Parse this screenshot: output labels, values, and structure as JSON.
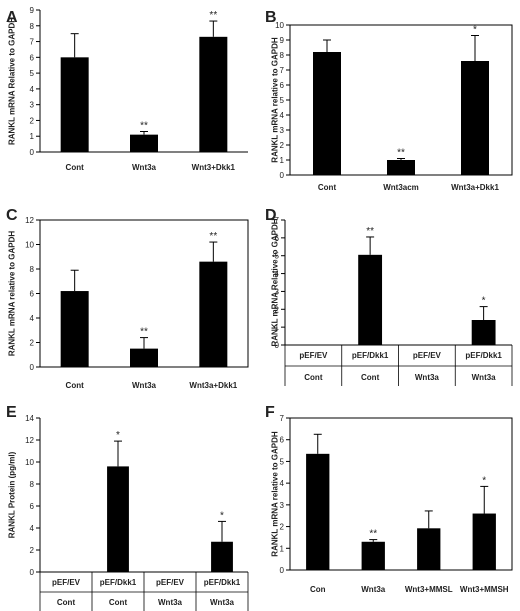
{
  "figure": {
    "panels": [
      "A",
      "B",
      "C",
      "D",
      "E",
      "F"
    ]
  },
  "chart_data": [
    {
      "panel": "A",
      "type": "bar",
      "categories": [
        "Cont",
        "Wnt3a",
        "Wnt3+Dkk1"
      ],
      "values": [
        6.0,
        1.1,
        7.3
      ],
      "errors": [
        1.5,
        0.2,
        1.0
      ],
      "significance": [
        "",
        "**",
        "**"
      ],
      "ylabel": "RANKL mRNA Relative to GAPDH",
      "ylim": [
        0,
        9
      ],
      "yticks": [
        0,
        1,
        2,
        3,
        4,
        5,
        6,
        7,
        8,
        9
      ],
      "grid": false,
      "box": false,
      "color": "#000000"
    },
    {
      "panel": "B",
      "type": "bar",
      "categories": [
        "Cont",
        "Wnt3acm",
        "Wnt3a+Dkk1"
      ],
      "values": [
        8.2,
        1.0,
        7.6
      ],
      "errors": [
        0.8,
        0.1,
        1.7
      ],
      "significance": [
        "",
        "**",
        "*"
      ],
      "ylabel": "RANKL  mRNA relative to GAPDH",
      "ylim": [
        0,
        10
      ],
      "yticks": [
        0,
        1,
        2,
        3,
        4,
        5,
        6,
        7,
        8,
        9,
        10
      ],
      "grid": false,
      "box": true,
      "color": "#000000"
    },
    {
      "panel": "C",
      "type": "bar",
      "categories": [
        "Cont",
        "Wnt3a",
        "Wnt3a+Dkk1"
      ],
      "values": [
        6.2,
        1.5,
        8.6
      ],
      "errors": [
        1.7,
        0.9,
        1.6
      ],
      "significance": [
        "",
        "**",
        "**"
      ],
      "ylabel": "RANKL mRNA relative to GAPDH",
      "ylim": [
        0,
        12
      ],
      "yticks": [
        0,
        2,
        4,
        6,
        8,
        10,
        12
      ],
      "grid": false,
      "box": true,
      "color": "#000000"
    },
    {
      "panel": "D",
      "type": "bar",
      "categories": [
        "pEF/EV",
        "pEF/Dkk1",
        "pEF/EV",
        "pEF/Dkk1"
      ],
      "groups": [
        "Cont",
        "Cont",
        "Wnt3a",
        "Wnt3a"
      ],
      "values": [
        0,
        5.05,
        0,
        1.4
      ],
      "errors": [
        0,
        1.0,
        0,
        0.75
      ],
      "significance": [
        "",
        "**",
        "",
        "*"
      ],
      "ylabel": "RANKL mRNA Relative to GAPDH",
      "ylim": [
        0,
        7
      ],
      "yticks": [
        0,
        1,
        2,
        3,
        4,
        5,
        6,
        7
      ],
      "grid": false,
      "box": false,
      "color": "#000000"
    },
    {
      "panel": "E",
      "type": "bar",
      "categories": [
        "pEF/EV",
        "pEF/Dkk1",
        "pEF/EV",
        "pEF/Dkk1"
      ],
      "groups": [
        "Cont",
        "Cont",
        "Wnt3a",
        "Wnt3a"
      ],
      "values": [
        0,
        9.6,
        0,
        2.75
      ],
      "errors": [
        0,
        2.3,
        0,
        1.85
      ],
      "significance": [
        "",
        "*",
        "",
        "*"
      ],
      "ylabel": "RANKL Protein (pg/ml)",
      "ylim": [
        0,
        14
      ],
      "yticks": [
        0,
        2,
        4,
        6,
        8,
        10,
        12,
        14
      ],
      "grid": false,
      "box": false,
      "color": "#000000"
    },
    {
      "panel": "F",
      "type": "bar",
      "categories": [
        "Con",
        "Wnt3a",
        "Wnt3+MMSL",
        "Wnt3+MMSH"
      ],
      "values": [
        5.35,
        1.3,
        1.92,
        2.6
      ],
      "errors": [
        0.9,
        0.1,
        0.8,
        1.25
      ],
      "significance": [
        "",
        "**",
        "",
        "*"
      ],
      "ylabel": "RANKL mRNA relative to GAPDH",
      "ylim": [
        0,
        7
      ],
      "yticks": [
        0,
        1,
        2,
        3,
        4,
        5,
        6,
        7
      ],
      "grid": false,
      "box": true,
      "color": "#000000"
    }
  ]
}
